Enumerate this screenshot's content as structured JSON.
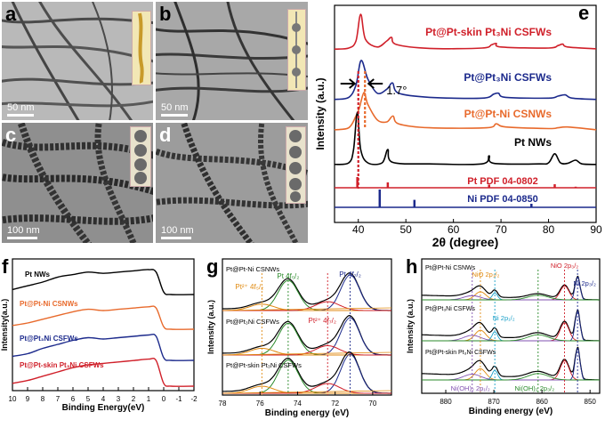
{
  "panels": {
    "a": {
      "label": "a",
      "scale": "50 nm"
    },
    "b": {
      "label": "b",
      "scale": "50 nm"
    },
    "c": {
      "label": "c",
      "scale": "100 nm"
    },
    "d": {
      "label": "d",
      "scale": "100 nm"
    }
  },
  "chart_data": [
    {
      "panel": "e",
      "type": "line",
      "xlabel": "2θ (degree)",
      "ylabel": "Intensity (a.u.)",
      "xlim": [
        35,
        90
      ],
      "xticks": [
        "40",
        "50",
        "60",
        "70",
        "80",
        "90"
      ],
      "annotation": "1.7°",
      "series": [
        {
          "name": "Pt@Pt-skin Pt₃Ni CSFWs",
          "color": "#d0202a",
          "x": [
            35,
            38,
            39.5,
            40.5,
            41.5,
            44,
            46,
            47,
            48,
            55,
            66,
            68,
            69,
            70,
            80,
            82,
            83,
            84,
            90
          ],
          "y": [
            0.02,
            0.05,
            0.25,
            1.0,
            0.3,
            0.08,
            0.25,
            0.35,
            0.15,
            0.04,
            0.05,
            0.14,
            0.18,
            0.08,
            0.05,
            0.12,
            0.16,
            0.08,
            0.03
          ]
        },
        {
          "name": "Pt@Pt₃Ni CSFWs",
          "color": "#1c2a8c",
          "x": [
            35,
            38,
            39.5,
            40.6,
            42,
            44,
            46,
            47.2,
            48.5,
            55,
            66,
            68.5,
            69.5,
            71,
            80,
            82,
            83.5,
            85,
            90
          ],
          "y": [
            0.05,
            0.1,
            0.4,
            1.0,
            0.55,
            0.2,
            0.3,
            0.45,
            0.2,
            0.1,
            0.08,
            0.18,
            0.2,
            0.1,
            0.08,
            0.13,
            0.16,
            0.08,
            0.05
          ]
        },
        {
          "name": "Pt@Pt-Ni CSNWs",
          "color": "#e86a2c",
          "x": [
            35,
            38,
            39.5,
            40.2,
            41.2,
            42,
            44,
            46,
            47.3,
            48.5,
            55,
            67,
            69,
            71,
            80,
            82,
            84,
            90
          ],
          "y": [
            0.05,
            0.1,
            0.4,
            0.6,
            1.0,
            0.7,
            0.3,
            0.25,
            0.4,
            0.2,
            0.1,
            0.1,
            0.2,
            0.12,
            0.08,
            0.1,
            0.12,
            0.05
          ]
        },
        {
          "name": "Pt NWs",
          "color": "#000000",
          "x": [
            35,
            38,
            39,
            39.8,
            40.5,
            42,
            45,
            46.2,
            47.2,
            55,
            66,
            67.5,
            68.5,
            78,
            80,
            81.3,
            82.5,
            84,
            85.7,
            87,
            90
          ],
          "y": [
            0.02,
            0.05,
            0.3,
            1.0,
            0.3,
            0.05,
            0.05,
            0.3,
            0.06,
            0.03,
            0.03,
            0.18,
            0.04,
            0.03,
            0.05,
            0.22,
            0.05,
            0.04,
            0.1,
            0.03,
            0.02
          ]
        }
      ],
      "reference_bars": [
        {
          "name": "Pt PDF 04-0802",
          "color": "#d0202a",
          "positions": [
            39.8,
            46.2,
            67.5,
            81.3,
            85.7
          ],
          "heights": [
            1.0,
            0.5,
            0.3,
            0.33,
            0.1
          ]
        },
        {
          "name": "Ni PDF 04-0850",
          "color": "#1c2a8c",
          "positions": [
            44.5,
            51.8,
            76.4
          ],
          "heights": [
            1.0,
            0.42,
            0.2
          ]
        }
      ]
    },
    {
      "panel": "f",
      "type": "line",
      "xlabel": "Binding Energy(eV)",
      "ylabel": "Intensity(a.u.)",
      "xlim": [
        10,
        -2
      ],
      "xticks": [
        "10",
        "9",
        "8",
        "7",
        "6",
        "5",
        "4",
        "3",
        "2",
        "1",
        "0",
        "-1",
        "-2"
      ],
      "series": [
        {
          "name": "Pt NWs",
          "color": "#000000",
          "x": [
            10,
            9,
            8,
            7,
            6,
            5,
            4,
            3,
            2,
            1,
            0.5,
            0,
            -0.5,
            -2
          ],
          "y": [
            0.2,
            0.35,
            0.5,
            0.7,
            0.8,
            0.9,
            0.85,
            0.9,
            0.95,
            1.0,
            0.9,
            0.1,
            0.0,
            0.0
          ]
        },
        {
          "name": "Pt@Pt-Ni CSNWs",
          "color": "#e86a2c",
          "x": [
            10,
            9,
            8,
            7,
            6,
            5,
            4,
            3,
            2,
            1,
            0.5,
            0,
            -0.5,
            -2
          ],
          "y": [
            0.15,
            0.25,
            0.4,
            0.55,
            0.7,
            0.8,
            0.75,
            0.8,
            0.85,
            0.9,
            0.85,
            0.1,
            0.0,
            0.0
          ]
        },
        {
          "name": "Pt@Pt₃Ni CSFWs",
          "color": "#1c2a8c",
          "x": [
            10,
            9,
            8,
            7,
            6,
            5,
            4,
            3,
            2,
            1,
            0.5,
            0,
            -0.5,
            -2
          ],
          "y": [
            0.15,
            0.25,
            0.45,
            0.6,
            0.75,
            0.85,
            0.8,
            0.85,
            0.9,
            0.95,
            0.9,
            0.1,
            0.0,
            0.0
          ]
        },
        {
          "name": "Pt@Pt-skin Pt₃Ni CSFWs",
          "color": "#d0202a",
          "x": [
            10,
            9,
            8,
            7,
            6,
            5,
            4,
            3,
            2,
            1,
            0.5,
            0,
            -0.5,
            -2
          ],
          "y": [
            0.1,
            0.2,
            0.35,
            0.5,
            0.65,
            0.75,
            0.8,
            0.85,
            0.9,
            0.95,
            0.9,
            0.1,
            0.0,
            0.0
          ]
        }
      ]
    },
    {
      "panel": "g",
      "type": "line",
      "xlabel": "Binding energy (eV)",
      "ylabel": "Intensity (a.u.)",
      "xlim": [
        78,
        69
      ],
      "xticks": [
        "78",
        "76",
        "74",
        "72",
        "70"
      ],
      "samples": [
        "Pt@Pt-Ni CSNWs",
        "Pt@Pt₃Ni CSFWs",
        "Pt@Pt-skin Pt₃Ni CSFWs"
      ],
      "peak_labels": [
        {
          "text": "Pt 4f₅/₂",
          "color": "#2a8a2a",
          "x": 74.5
        },
        {
          "text": "Pt 4f₇/₂",
          "color": "#1c2a8c",
          "x": 71.2
        },
        {
          "text": "Pt²⁺ 4f₅/₂",
          "color": "#e08a10",
          "x": 75.9
        },
        {
          "text": "Pt²⁺ 4f₇/₂",
          "color": "#d0202a",
          "x": 72.4
        }
      ]
    },
    {
      "panel": "h",
      "type": "line",
      "xlabel": "Binding energy (eV)",
      "ylabel": "Intensity (a.u.)",
      "xlim": [
        885,
        848
      ],
      "xticks": [
        "880",
        "870",
        "860",
        "850"
      ],
      "samples": [
        "Pt@Pt-Ni CSNWs",
        "Pt@Pt₃Ni CSFWs",
        "Pt@Pt-skin Pt₃Ni CSFWs"
      ],
      "peak_labels": [
        {
          "text": "NiO 2p₃/₂",
          "color": "#d0202a",
          "x": 855.3
        },
        {
          "text": "Ni 2p₃/₂",
          "color": "#1c2a8c",
          "x": 852.6
        },
        {
          "text": "NiO 2p₁/₂",
          "color": "#e08a10",
          "x": 872.8
        },
        {
          "text": "Ni 2p₁/₂",
          "color": "#1aa0c8",
          "x": 869.8
        },
        {
          "text": "Ni(OH)₂ 2p₁/₂",
          "color": "#8050b0",
          "x": 874.5
        },
        {
          "text": "Ni(OH)₂ 2p₃/₂",
          "color": "#2a8a2a",
          "x": 860.8
        }
      ]
    }
  ],
  "colors": {
    "red": "#d0202a",
    "blue": "#1c2a8c",
    "orange": "#e86a2c",
    "black": "#000000",
    "green": "#2a8a2a",
    "gold": "#e08a10",
    "cyan": "#1aa0c8",
    "purple": "#8050b0"
  }
}
